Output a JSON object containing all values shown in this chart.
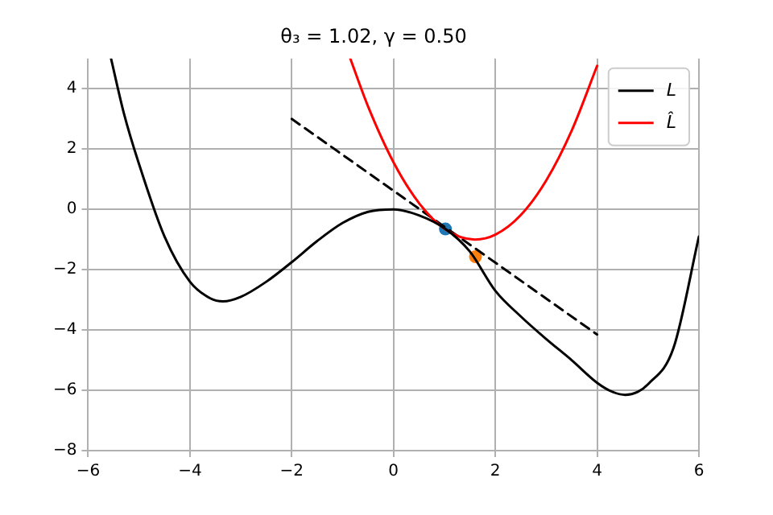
{
  "chart_data": {
    "type": "line",
    "title": "θ₃ = 1.02, γ = 0.50",
    "xlim": [
      -6,
      6
    ],
    "ylim": [
      -8,
      5
    ],
    "xticks": [
      -6,
      -4,
      -2,
      0,
      2,
      4,
      6
    ],
    "yticks": [
      -8,
      -6,
      -4,
      -2,
      0,
      2,
      4
    ],
    "grid": true,
    "legend": "top right",
    "series": [
      {
        "name": "L",
        "color": "#000000",
        "marker": "none",
        "line_style": "solid",
        "x": [
          -5.55,
          -5.3,
          -5,
          -4.5,
          -4,
          -3.6,
          -3.35,
          -3,
          -2.5,
          -2,
          -1.5,
          -1,
          -0.5,
          0,
          0.5,
          1.02,
          1.5,
          2,
          2.5,
          3,
          3.5,
          4,
          4.3,
          4.55,
          4.8,
          5,
          5.5,
          6
        ],
        "values": [
          5,
          3.2,
          1.5,
          -0.9,
          -2.4,
          -2.95,
          -3.05,
          -2.9,
          -2.4,
          -1.75,
          -1.05,
          -0.45,
          -0.08,
          0,
          -0.2,
          -0.65,
          -1.4,
          -2.7,
          -3.55,
          -4.3,
          -5,
          -5.75,
          -6.05,
          -6.15,
          -6.05,
          -5.8,
          -4.6,
          -0.9
        ]
      },
      {
        "name": "L̂",
        "color": "#ff0000",
        "marker": "none",
        "line_style": "solid",
        "x": [
          -0.85,
          -0.5,
          0,
          0.5,
          1,
          1.6,
          2,
          2.5,
          3,
          3.5,
          4
        ],
        "values": [
          5,
          3.41,
          1.56,
          0.21,
          -0.64,
          -1,
          -0.84,
          -0.19,
          0.96,
          2.61,
          4.76
        ]
      },
      {
        "color": "#000000",
        "marker": "none",
        "line_style": "dashed",
        "x": [
          -2,
          4
        ],
        "values": [
          3,
          -4.15
        ]
      },
      {
        "color": "#1f77b4",
        "type": "scatter",
        "marker": "circle",
        "x": [
          1.02
        ],
        "values": [
          -0.65
        ]
      },
      {
        "color": "#ff7f0e",
        "type": "scatter",
        "marker": "circle",
        "x": [
          1.61
        ],
        "values": [
          -1.57
        ]
      }
    ]
  }
}
